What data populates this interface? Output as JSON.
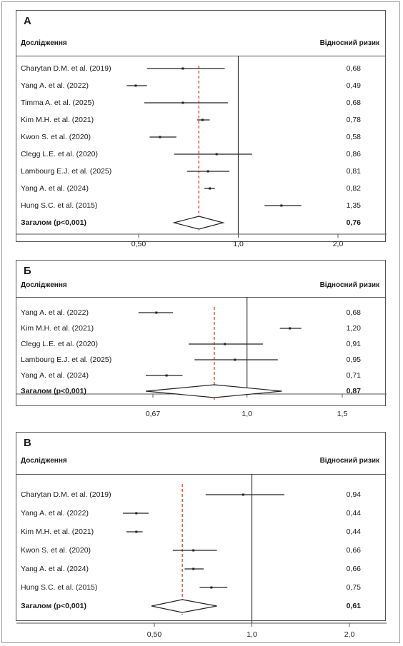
{
  "chart_data": [
    {
      "type": "forest",
      "panel": "А",
      "header_left": "Дослідження",
      "header_right": "Відносний ризик",
      "studies": [
        {
          "name": "Charytan D.M. et al. (2019)",
          "estimate": 0.68,
          "ci": [
            0.53,
            0.91
          ],
          "label": "0,68"
        },
        {
          "name": "Yang A. et al. (2022)",
          "estimate": 0.49,
          "ci": [
            0.46,
            0.53
          ],
          "label": "0,49"
        },
        {
          "name": "Timma A. et al. (2025)",
          "estimate": 0.68,
          "ci": [
            0.52,
            0.93
          ],
          "label": "0,68"
        },
        {
          "name": "Kim M.H. et al. (2021)",
          "estimate": 0.78,
          "ci": [
            0.75,
            0.82
          ],
          "label": "0,78"
        },
        {
          "name": "Kwon S. et al. (2020)",
          "estimate": 0.58,
          "ci": [
            0.54,
            0.65
          ],
          "label": "0,58"
        },
        {
          "name": "Clegg L.E. et al. (2020)",
          "estimate": 0.86,
          "ci": [
            0.64,
            1.1
          ],
          "label": "0,86"
        },
        {
          "name": "Lambourg E.J. et al. (2025)",
          "estimate": 0.81,
          "ci": [
            0.7,
            0.94
          ],
          "label": "0,81"
        },
        {
          "name": "Yang A. et al. (2024)",
          "estimate": 0.82,
          "ci": [
            0.79,
            0.85
          ],
          "label": "0,82"
        },
        {
          "name": "Hung S.C. et al. (2015)",
          "estimate": 1.35,
          "ci": [
            1.2,
            1.55
          ],
          "label": "1,35"
        }
      ],
      "overall": {
        "name": "Загалом (p<0,001)",
        "estimate": 0.76,
        "ci": [
          0.64,
          0.9
        ],
        "label": "0,76"
      },
      "x_ticks": [
        {
          "value": 0.5,
          "label": "0,50"
        },
        {
          "value": 1.0,
          "label": "1,0"
        },
        {
          "value": 2.0,
          "label": "2,0"
        }
      ],
      "x_scale": "log",
      "xlim": [
        0.3,
        2.8
      ]
    },
    {
      "type": "forest",
      "panel": "Б",
      "header_left": "Дослідження",
      "header_right": "Відносний ризик",
      "studies": [
        {
          "name": "Yang A. et al. (2022)",
          "estimate": 0.68,
          "ci": [
            0.63,
            0.73
          ],
          "label": "0,68"
        },
        {
          "name": "Kim M.H. et al. (2021)",
          "estimate": 1.2,
          "ci": [
            1.15,
            1.26
          ],
          "label": "1,20"
        },
        {
          "name": "Clegg L.E. et al. (2020)",
          "estimate": 0.91,
          "ci": [
            0.78,
            1.07
          ],
          "label": "0,91"
        },
        {
          "name": "Lambourg E.J. et al. (2025)",
          "estimate": 0.95,
          "ci": [
            0.8,
            1.14
          ],
          "label": "0,95"
        },
        {
          "name": "Yang A. et al. (2024)",
          "estimate": 0.71,
          "ci": [
            0.65,
            0.76
          ],
          "label": "0,71"
        }
      ],
      "overall": {
        "name": "Загалом (p<0,001)",
        "estimate": 0.87,
        "ci": [
          0.65,
          1.16
        ],
        "label": "0,87"
      },
      "x_ticks": [
        {
          "value": 0.67,
          "label": "0,67"
        },
        {
          "value": 1.0,
          "label": "1,0"
        },
        {
          "value": 1.5,
          "label": "1,5"
        }
      ],
      "x_scale": "log",
      "xlim": [
        0.5,
        1.8
      ]
    },
    {
      "type": "forest",
      "panel": "В",
      "header_left": "Дослідження",
      "header_right": "Відносний ризик",
      "studies": [
        {
          "name": "Charytan D.M. et al. (2019)",
          "estimate": 0.94,
          "ci": [
            0.72,
            1.26
          ],
          "label": "0,94"
        },
        {
          "name": "Yang A. et al. (2022)",
          "estimate": 0.44,
          "ci": [
            0.4,
            0.48
          ],
          "label": "0,44"
        },
        {
          "name": "Kim M.H. et al. (2021)",
          "estimate": 0.44,
          "ci": [
            0.41,
            0.46
          ],
          "label": "0,44"
        },
        {
          "name": "Kwon S. et al. (2020)",
          "estimate": 0.66,
          "ci": [
            0.57,
            0.78
          ],
          "label": "0,66"
        },
        {
          "name": "Yang A. et al. (2024)",
          "estimate": 0.66,
          "ci": [
            0.62,
            0.71
          ],
          "label": "0,66"
        },
        {
          "name": "Hung S.C. et al. (2015)",
          "estimate": 0.75,
          "ci": [
            0.69,
            0.84
          ],
          "label": "0,75"
        }
      ],
      "overall": {
        "name": "Загалом (p<0,001)",
        "estimate": 0.61,
        "ci": [
          0.49,
          0.78
        ],
        "label": "0,61"
      },
      "x_ticks": [
        {
          "value": 0.5,
          "label": "0,50"
        },
        {
          "value": 1.0,
          "label": "1,0"
        },
        {
          "value": 2.0,
          "label": "2,0"
        }
      ],
      "x_scale": "log",
      "xlim": [
        0.3,
        2.8
      ]
    }
  ],
  "colors": {
    "reference_line": "#3a3a3a",
    "pooled_line": "#e0492c",
    "ci_line": "#222222",
    "frame": "#555555"
  }
}
